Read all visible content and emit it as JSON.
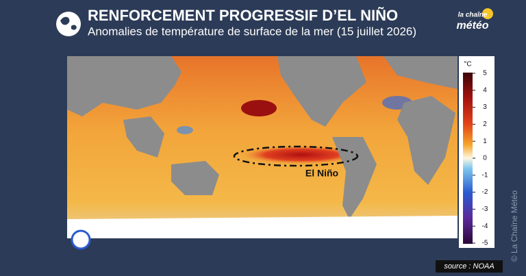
{
  "header": {
    "title": "RENFORCEMENT PROGRESSIF D’EL NIÑO",
    "subtitle": "Anomalies de température de surface de la mer (15 juillet 2026)"
  },
  "logo": {
    "line1": "la chaîne",
    "line2": "météo"
  },
  "map": {
    "annotation": "El Niño"
  },
  "colorbar": {
    "unit": "°C",
    "ticks": [
      5,
      4,
      3,
      2,
      1,
      0,
      -1,
      -2,
      -3,
      -4,
      -5
    ]
  },
  "source": "source : NOAA",
  "credit": "© La Chaîne Météo"
}
